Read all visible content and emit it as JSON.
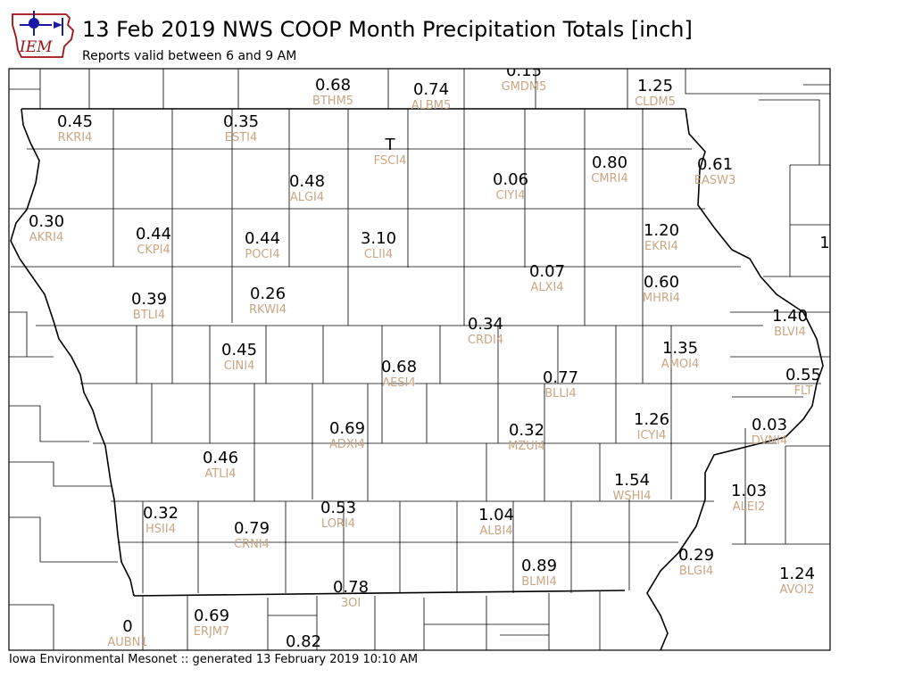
{
  "header": {
    "logo_text": "IEM",
    "title": "13 Feb 2019 NWS COOP Month Precipitation Totals [inch]",
    "subtitle": "Reports valid between 6 and 9 AM"
  },
  "footer": {
    "text": "Iowa Environmental Mesonet :: generated 13 February 2019 10:10 AM"
  },
  "colors": {
    "station_id": "#c8a682",
    "value": "#000000",
    "logo_blue": "#1a1aa8",
    "logo_red": "#a01010"
  },
  "stations": [
    {
      "id": "BTHM5",
      "value": "0.68"
    },
    {
      "id": "ALBM5",
      "value": "0.74"
    },
    {
      "id": "GMDM5",
      "value": "0.15"
    },
    {
      "id": "CLDM5",
      "value": "1.25"
    },
    {
      "id": "RKRI4",
      "value": "0.45"
    },
    {
      "id": "ESTI4",
      "value": "0.35"
    },
    {
      "id": "FSCI4",
      "value": "T"
    },
    {
      "id": "CMRI4",
      "value": "0.80"
    },
    {
      "id": "EASW3",
      "value": "0.61"
    },
    {
      "id": "ALGI4",
      "value": "0.48"
    },
    {
      "id": "CIYI4",
      "value": "0.06"
    },
    {
      "id": "AKRI4",
      "value": "0.30"
    },
    {
      "id": "CKPI4",
      "value": "0.44"
    },
    {
      "id": "POCI4",
      "value": "0.44"
    },
    {
      "id": "CLII4",
      "value": "3.10"
    },
    {
      "id": "EKRI4",
      "value": "1.20"
    },
    {
      "id": "",
      "value": "1"
    },
    {
      "id": "ALXI4",
      "value": "0.07"
    },
    {
      "id": "MHRI4",
      "value": "0.60"
    },
    {
      "id": "BTLI4",
      "value": "0.39"
    },
    {
      "id": "RKWI4",
      "value": "0.26"
    },
    {
      "id": "BLVI4",
      "value": "1.40"
    },
    {
      "id": "CRDI4",
      "value": "0.34"
    },
    {
      "id": "AMOI4",
      "value": "1.35"
    },
    {
      "id": "CINI4",
      "value": "0.45"
    },
    {
      "id": "AESI4",
      "value": "0.68"
    },
    {
      "id": "BLLI4",
      "value": "0.77"
    },
    {
      "id": "FLT",
      "value": "0.55"
    },
    {
      "id": "ICYI4",
      "value": "1.26"
    },
    {
      "id": "DVNI4",
      "value": "0.03"
    },
    {
      "id": "ADXI4",
      "value": "0.69"
    },
    {
      "id": "MZUI4",
      "value": "0.32"
    },
    {
      "id": "ATLI4",
      "value": "0.46"
    },
    {
      "id": "WSHI4",
      "value": "1.54"
    },
    {
      "id": "ALEI2",
      "value": "1.03"
    },
    {
      "id": "HSII4",
      "value": "0.32"
    },
    {
      "id": "LORI4",
      "value": "0.53"
    },
    {
      "id": "CRNI4",
      "value": "0.79"
    },
    {
      "id": "ALBI4",
      "value": "1.04"
    },
    {
      "id": "BLMI4",
      "value": "0.89"
    },
    {
      "id": "BLGI4",
      "value": "0.29"
    },
    {
      "id": "AVOI2",
      "value": "1.24"
    },
    {
      "id": "3OI",
      "value": "0.78"
    },
    {
      "id": "AUBN1",
      "value": "0"
    },
    {
      "id": "ERJM7",
      "value": "0.69"
    },
    {
      "id": "",
      "value": "0.82"
    }
  ]
}
